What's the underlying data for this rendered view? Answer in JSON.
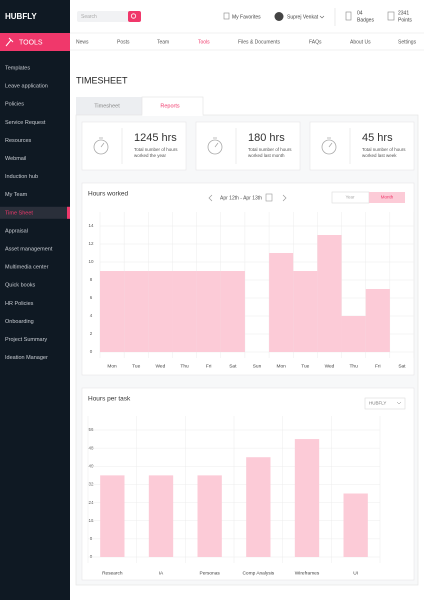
{
  "header": {
    "logo": "HUBFLY",
    "search_placeholder": "Search",
    "favorites": "My Favorites",
    "user": "Suprej Venkat",
    "badges_count": "04",
    "badges_label": "Badges",
    "points_count": "2341",
    "points_label": "Points"
  },
  "sidebar": {
    "section": "TOOLS",
    "items": [
      "Templates",
      "Leave application",
      "Policies",
      "Service Request",
      "Resources",
      "Webmail",
      "Induction hub",
      "My Team",
      "Time Sheet",
      "Appraisal",
      "Asset management",
      "Multimedia center",
      "Quick books",
      "HR Policies",
      "Onboarding",
      "Project Summary",
      "Ideation Manager"
    ]
  },
  "nav": [
    "News",
    "Posts",
    "Team",
    "Tools",
    "Files & Documents",
    "FAQs",
    "About Us",
    "Settings"
  ],
  "page_title": "TIMESHEET",
  "tabs": [
    "Timesheet",
    "Reports"
  ],
  "stats": [
    {
      "value": "1245 hrs",
      "description": [
        "Total number of hours",
        "worked the year"
      ]
    },
    {
      "value": "180 hrs",
      "description": [
        "Total number of hours",
        "worked last month"
      ]
    },
    {
      "value": "45 hrs",
      "description": [
        "Total number of hours",
        "worked last week"
      ]
    }
  ],
  "chart_data": [
    {
      "type": "bar",
      "title": "Hours worked",
      "date_range": "Apr 12th - Apr 13th",
      "toggle": [
        "Year",
        "Month"
      ],
      "categories": [
        "Mon",
        "Tue",
        "Wed",
        "Thu",
        "Fri",
        "Sat",
        "Sun",
        "Mon",
        "Tue",
        "Wed",
        "Thu",
        "Fri",
        "Sat"
      ],
      "values": [
        9,
        9,
        9,
        9,
        9,
        9,
        null,
        11,
        9,
        13,
        4,
        7,
        null
      ],
      "color": "#fccbd7",
      "ylim": [
        0,
        14
      ],
      "yticks": [
        0,
        2,
        4,
        6,
        8,
        10,
        12,
        14
      ],
      "grid": true
    },
    {
      "type": "bar",
      "title": "Hours per task",
      "dropdown": "HUBFLY",
      "categories": [
        "Research",
        "IA",
        "Personas",
        "Comp Analysis",
        "Wireframes",
        "UI"
      ],
      "values": [
        36,
        36,
        36,
        44,
        52,
        28
      ],
      "color": "#fccbd7",
      "ylim": [
        0,
        56
      ],
      "yticks": [
        0,
        8,
        16,
        24,
        32,
        40,
        48,
        56
      ],
      "grid": true
    }
  ]
}
